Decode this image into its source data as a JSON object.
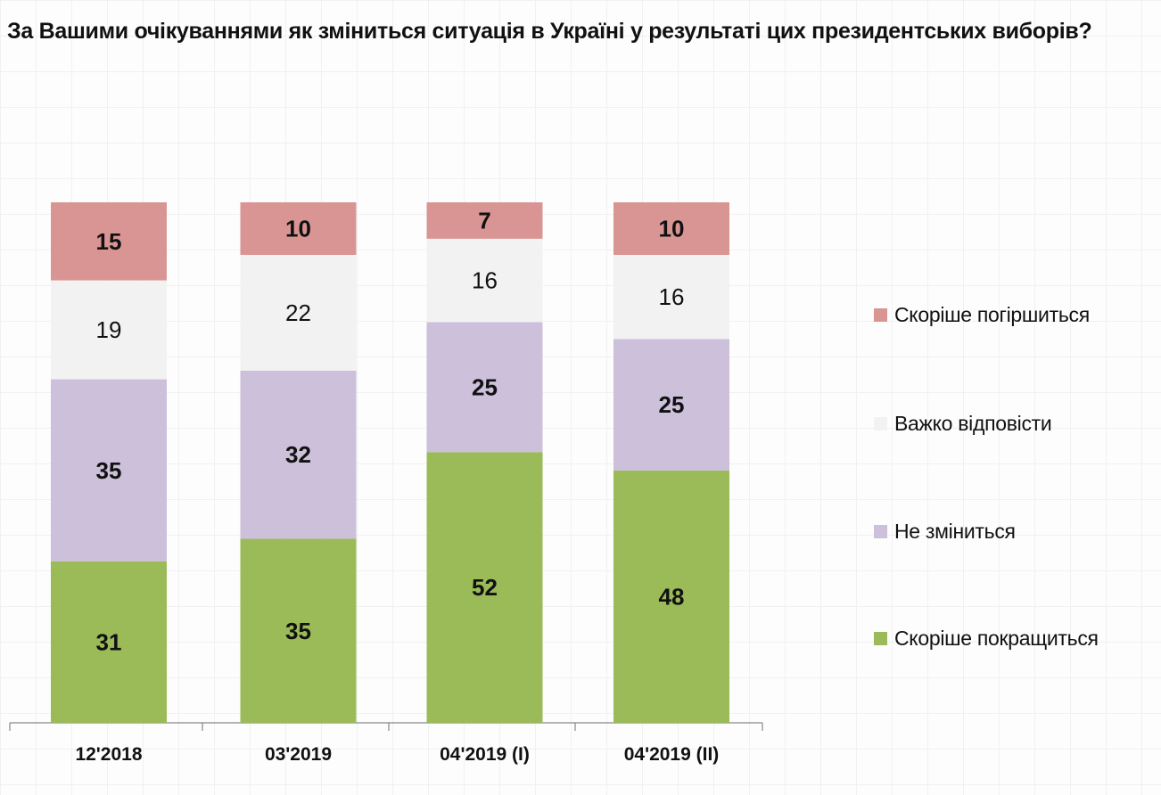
{
  "chart_data": {
    "type": "bar",
    "stacked": true,
    "title": "За Вашими очікуваннями як зміниться ситуація в Україні у результаті цих президентських виборів?",
    "categories": [
      "12'2018",
      "03'2019",
      "04'2019 (I)",
      "04'2019 (II)"
    ],
    "series": [
      {
        "name": "Скоріше покращиться",
        "color": "#9bbb59",
        "values": [
          31,
          35,
          52,
          48
        ],
        "label_bold": true
      },
      {
        "name": "Не зміниться",
        "color": "#ccc0da",
        "values": [
          35,
          32,
          25,
          25
        ],
        "label_bold": true
      },
      {
        "name": "Важко відповісти",
        "color": "#f2f2f2",
        "values": [
          19,
          22,
          16,
          16
        ],
        "label_bold": false
      },
      {
        "name": "Скоріше погіршиться",
        "color": "#d99594",
        "values": [
          15,
          10,
          7,
          10
        ],
        "label_bold": true
      }
    ],
    "ylim": [
      0,
      100
    ],
    "grid": false,
    "legend_placement": "right"
  }
}
